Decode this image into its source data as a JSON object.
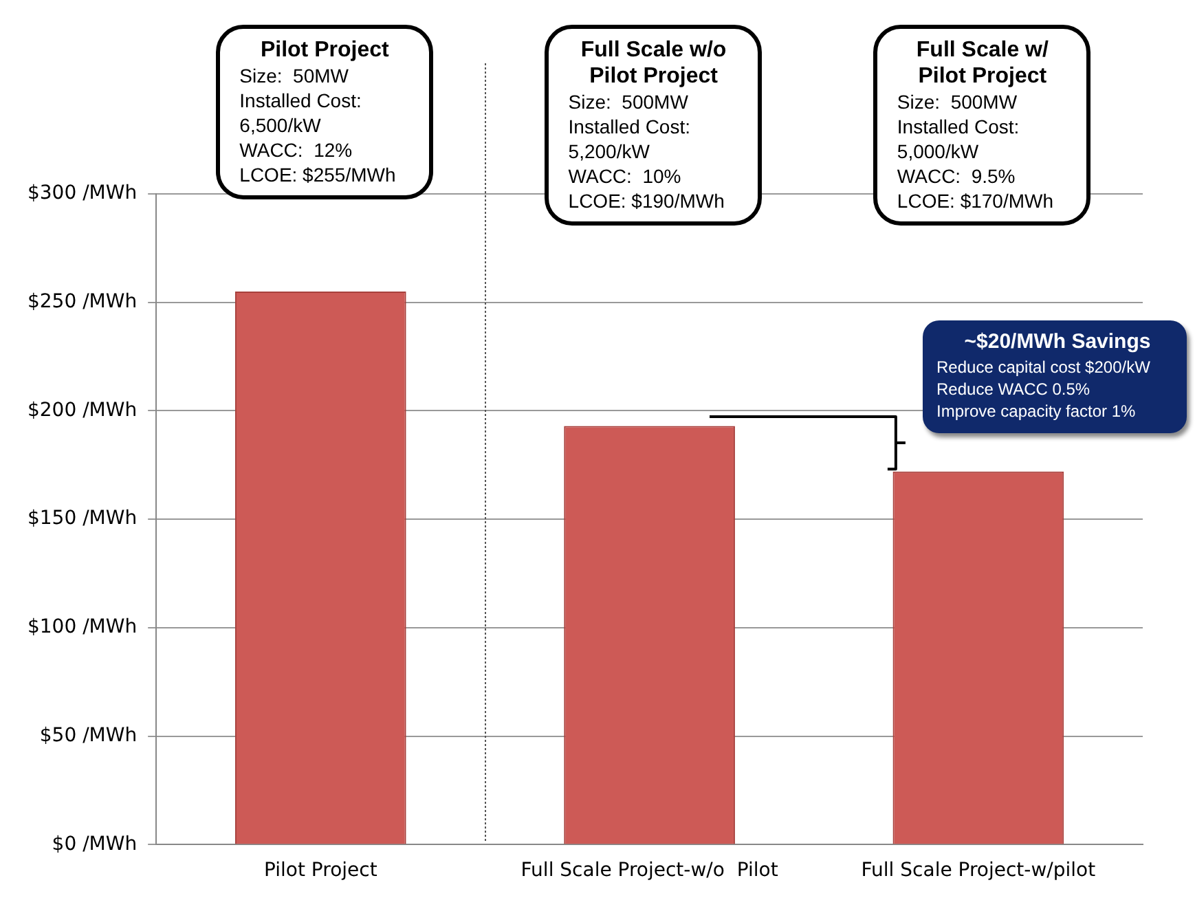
{
  "chart_data": {
    "type": "bar",
    "categories": [
      "Pilot Project",
      "Full Scale Project-w/o  Pilot",
      "Full Scale Project-w/pilot"
    ],
    "values": [
      255,
      193,
      172
    ],
    "color": "#cd5a56",
    "ylim": [
      0,
      300
    ],
    "yticks": [
      {
        "value": 0,
        "label": "$0 /MWh"
      },
      {
        "value": 50,
        "label": "$50 /MWh"
      },
      {
        "value": 100,
        "label": "$100 /MWh"
      },
      {
        "value": 150,
        "label": "$150 /MWh"
      },
      {
        "value": 200,
        "label": "$200 /MWh"
      },
      {
        "value": 250,
        "label": "$250 /MWh"
      },
      {
        "value": 300,
        "label": "$300 /MWh"
      }
    ],
    "grid": "y",
    "legend": false,
    "annotations": [
      "Pilot Project\nSize:  50MW\nInstalled Cost:\n6,500/kW\nWACC:  12%\nLCOE: $255/MWh",
      "Full Scale w/o Pilot Project\nSize:  500MW\nInstalled Cost:\n5,200/kW\nWACC:  10%\nLCOE: $190/MWh",
      "Full Scale w/ Pilot Project\nSize:  500MW\nInstalled Cost:\n5,000/kW\nWACC:  9.5%\nLCOE: $170/MWh",
      "~$20/MWh Savings\nReduce capital cost $200/kW\nReduce WACC 0.5%\nImprove capacity factor 1%"
    ]
  }
}
